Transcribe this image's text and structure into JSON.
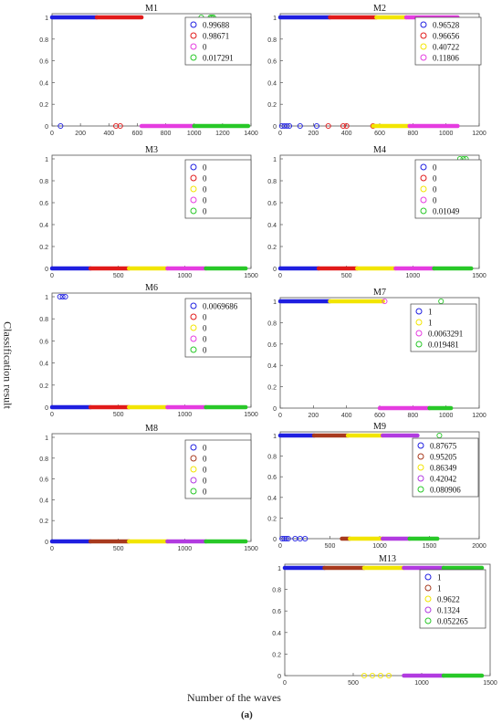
{
  "figure": {
    "ylabel": "Classification result",
    "xlabel": "Number of the waves",
    "caption": "(a)"
  },
  "colors": {
    "blue": "#1f1fe0",
    "red": "#e11a1a",
    "darkred": "#a83a1e",
    "yellow": "#f2e500",
    "magenta": "#e53ce0",
    "purple": "#b13be0",
    "green": "#28c828"
  },
  "chart_data": [
    {
      "type": "scatter",
      "title": "M1",
      "xticks": [
        "0",
        "200",
        "400",
        "600",
        "800",
        "1000",
        "1200",
        "1400"
      ],
      "xlim": [
        0,
        1400
      ],
      "ylim": [
        0,
        1
      ],
      "yticks": [
        "0",
        "0.2",
        "0.4",
        "0.6",
        "0.8",
        "1"
      ],
      "legend": [
        "0.99688",
        "0.98671",
        "0",
        "0.017291"
      ],
      "series": [
        {
          "color": "blue",
          "y": 1,
          "x": [
            0,
            315
          ]
        },
        {
          "color": "blue",
          "y": 0,
          "pts": [
            60
          ]
        },
        {
          "color": "red",
          "y": 1,
          "x": [
            315,
            630
          ]
        },
        {
          "color": "red",
          "y": 0,
          "pts": [
            450,
            480
          ]
        },
        {
          "color": "magenta",
          "y": 0,
          "x": [
            630,
            1000
          ]
        },
        {
          "color": "green",
          "y": 0,
          "x": [
            1000,
            1380
          ]
        },
        {
          "color": "green",
          "y": 1,
          "pts": [
            1050,
            1115,
            1125,
            1135
          ]
        }
      ]
    },
    {
      "type": "scatter",
      "title": "M2",
      "xticks": [
        "0",
        "200",
        "400",
        "600",
        "800",
        "1000",
        "1200"
      ],
      "xlim": [
        0,
        1200
      ],
      "ylim": [
        0,
        1
      ],
      "yticks": [
        "0",
        "0.2",
        "0.4",
        "0.6",
        "0.8",
        "1"
      ],
      "legend": [
        "0.96528",
        "0.96656",
        "0.40722",
        "0.11806"
      ],
      "series": [
        {
          "color": "blue",
          "y": 1,
          "x": [
            0,
            300
          ]
        },
        {
          "color": "blue",
          "y": 0,
          "pts": [
            10,
            25,
            40,
            55,
            120,
            220
          ]
        },
        {
          "color": "red",
          "y": 1,
          "x": [
            300,
            580
          ]
        },
        {
          "color": "red",
          "y": 0,
          "pts": [
            290,
            380,
            400,
            560
          ]
        },
        {
          "color": "yellow",
          "y": 1,
          "x": [
            580,
            760
          ]
        },
        {
          "color": "yellow",
          "y": 0,
          "x": [
            560,
            780
          ]
        },
        {
          "color": "magenta",
          "y": 1,
          "x": [
            760,
            1070
          ]
        },
        {
          "color": "magenta",
          "y": 0,
          "x": [
            780,
            1070
          ]
        }
      ]
    },
    {
      "type": "scatter",
      "title": "M3",
      "xticks": [
        "0",
        "500",
        "1000",
        "1500"
      ],
      "xlim": [
        0,
        1500
      ],
      "ylim": [
        0,
        1
      ],
      "yticks": [
        "0",
        "0.2",
        "0.4",
        "0.6",
        "0.8",
        "1"
      ],
      "legend": [
        "0",
        "0",
        "0",
        "0",
        "0"
      ],
      "series": [
        {
          "color": "blue",
          "y": 0,
          "x": [
            0,
            290
          ]
        },
        {
          "color": "red",
          "y": 0,
          "x": [
            290,
            580
          ]
        },
        {
          "color": "yellow",
          "y": 0,
          "x": [
            580,
            870
          ]
        },
        {
          "color": "magenta",
          "y": 0,
          "x": [
            870,
            1160
          ]
        },
        {
          "color": "green",
          "y": 0,
          "x": [
            1160,
            1460
          ]
        }
      ]
    },
    {
      "type": "scatter",
      "title": "M4",
      "xticks": [
        "0",
        "500",
        "1000",
        "1500"
      ],
      "xlim": [
        0,
        1500
      ],
      "ylim": [
        0,
        1
      ],
      "yticks": [
        "0",
        "0.2",
        "0.4",
        "0.6",
        "0.8",
        "1"
      ],
      "legend": [
        "0",
        "0",
        "0",
        "0",
        "0.01049"
      ],
      "series": [
        {
          "color": "blue",
          "y": 0,
          "x": [
            0,
            290
          ]
        },
        {
          "color": "red",
          "y": 0,
          "x": [
            290,
            580
          ]
        },
        {
          "color": "yellow",
          "y": 0,
          "x": [
            580,
            870
          ]
        },
        {
          "color": "magenta",
          "y": 0,
          "x": [
            870,
            1160
          ]
        },
        {
          "color": "green",
          "y": 0,
          "x": [
            1160,
            1440
          ]
        },
        {
          "color": "green",
          "y": 1,
          "pts": [
            1355,
            1380,
            1400
          ]
        }
      ]
    },
    {
      "type": "scatter",
      "title": "M6",
      "xticks": [
        "0",
        "500",
        "1000",
        "1500"
      ],
      "xlim": [
        0,
        1500
      ],
      "ylim": [
        0,
        1
      ],
      "yticks": [
        "0",
        "0.2",
        "0.4",
        "0.6",
        "0.8",
        "1"
      ],
      "legend": [
        "0.0069686",
        "0",
        "0",
        "0",
        "0"
      ],
      "series": [
        {
          "color": "blue",
          "y": 0,
          "x": [
            0,
            290
          ]
        },
        {
          "color": "blue",
          "y": 1,
          "pts": [
            60,
            80,
            100
          ]
        },
        {
          "color": "red",
          "y": 0,
          "x": [
            290,
            580
          ]
        },
        {
          "color": "yellow",
          "y": 0,
          "x": [
            580,
            870
          ]
        },
        {
          "color": "magenta",
          "y": 0,
          "x": [
            870,
            1160
          ]
        },
        {
          "color": "green",
          "y": 0,
          "x": [
            1160,
            1460
          ]
        }
      ]
    },
    {
      "type": "scatter",
      "title": "M7",
      "xticks": [
        "0",
        "200",
        "400",
        "600",
        "800",
        "1000",
        "1200"
      ],
      "xlim": [
        0,
        1200
      ],
      "ylim": [
        0,
        1
      ],
      "yticks": [
        "0",
        "0.2",
        "0.4",
        "0.6",
        "0.8",
        "1"
      ],
      "legend": [
        "1",
        "1",
        "0.0063291",
        "0.019481"
      ],
      "series": [
        {
          "color": "blue",
          "y": 1,
          "x": [
            0,
            300
          ]
        },
        {
          "color": "yellow",
          "y": 1,
          "x": [
            300,
            620
          ]
        },
        {
          "color": "magenta",
          "y": 1,
          "pts": [
            630
          ]
        },
        {
          "color": "magenta",
          "y": 0,
          "x": [
            600,
            900
          ]
        },
        {
          "color": "green",
          "y": 1,
          "pts": [
            970
          ]
        },
        {
          "color": "green",
          "y": 0,
          "x": [
            900,
            1030
          ]
        }
      ]
    },
    {
      "type": "scatter",
      "title": "M8",
      "xticks": [
        "0",
        "500",
        "1000",
        "1500"
      ],
      "xlim": [
        0,
        1500
      ],
      "ylim": [
        0,
        1
      ],
      "yticks": [
        "0",
        "0.2",
        "0.4",
        "0.6",
        "0.8",
        "1"
      ],
      "legend": [
        "0",
        "0",
        "0",
        "0",
        "0"
      ],
      "series": [
        {
          "color": "blue",
          "y": 0,
          "x": [
            0,
            290
          ]
        },
        {
          "color": "darkred",
          "y": 0,
          "x": [
            290,
            580
          ]
        },
        {
          "color": "yellow",
          "y": 0,
          "x": [
            580,
            870
          ]
        },
        {
          "color": "purple",
          "y": 0,
          "x": [
            870,
            1160
          ]
        },
        {
          "color": "green",
          "y": 0,
          "x": [
            1160,
            1460
          ]
        }
      ]
    },
    {
      "type": "scatter",
      "title": "M9",
      "xticks": [
        "0",
        "500",
        "1000",
        "1500",
        "2000"
      ],
      "xlim": [
        0,
        2000
      ],
      "ylim": [
        0,
        1
      ],
      "yticks": [
        "0",
        "0.2",
        "0.4",
        "0.6",
        "0.8",
        "1"
      ],
      "legend": [
        "0.87675",
        "0.95205",
        "0.86349",
        "0.42042",
        "0.080906"
      ],
      "series": [
        {
          "color": "blue",
          "y": 1,
          "x": [
            0,
            340
          ]
        },
        {
          "color": "blue",
          "y": 0,
          "pts": [
            20,
            40,
            60,
            80,
            150,
            200,
            250
          ]
        },
        {
          "color": "darkred",
          "y": 1,
          "x": [
            340,
            680
          ]
        },
        {
          "color": "darkred",
          "y": 0,
          "x": [
            620,
            700
          ]
        },
        {
          "color": "yellow",
          "y": 1,
          "x": [
            680,
            1030
          ]
        },
        {
          "color": "yellow",
          "y": 0,
          "x": [
            700,
            1030
          ]
        },
        {
          "color": "purple",
          "y": 1,
          "x": [
            1030,
            1380
          ]
        },
        {
          "color": "purple",
          "y": 0,
          "x": [
            1030,
            1300
          ]
        },
        {
          "color": "green",
          "y": 1,
          "pts": [
            1600
          ]
        },
        {
          "color": "green",
          "y": 0,
          "x": [
            1300,
            1580
          ]
        }
      ]
    },
    {
      "type": "scatter",
      "title": "M13",
      "xticks": [
        "0",
        "500",
        "1000",
        "1500"
      ],
      "xlim": [
        0,
        1500
      ],
      "ylim": [
        0,
        1
      ],
      "yticks": [
        "0",
        "0.2",
        "0.4",
        "0.6",
        "0.8",
        "1"
      ],
      "legend": [
        "1",
        "1",
        "0.9622",
        "0.1324",
        "0.052265"
      ],
      "series": [
        {
          "color": "blue",
          "y": 1,
          "x": [
            0,
            290
          ]
        },
        {
          "color": "darkred",
          "y": 1,
          "x": [
            290,
            580
          ]
        },
        {
          "color": "yellow",
          "y": 1,
          "x": [
            580,
            870
          ]
        },
        {
          "color": "yellow",
          "y": 0,
          "pts": [
            580,
            640,
            700,
            760
          ]
        },
        {
          "color": "purple",
          "y": 1,
          "x": [
            870,
            1160
          ]
        },
        {
          "color": "purple",
          "y": 0,
          "x": [
            870,
            1160
          ]
        },
        {
          "color": "green",
          "y": 1,
          "x": [
            1160,
            1440
          ]
        },
        {
          "color": "green",
          "y": 0,
          "x": [
            1160,
            1440
          ]
        }
      ]
    }
  ]
}
